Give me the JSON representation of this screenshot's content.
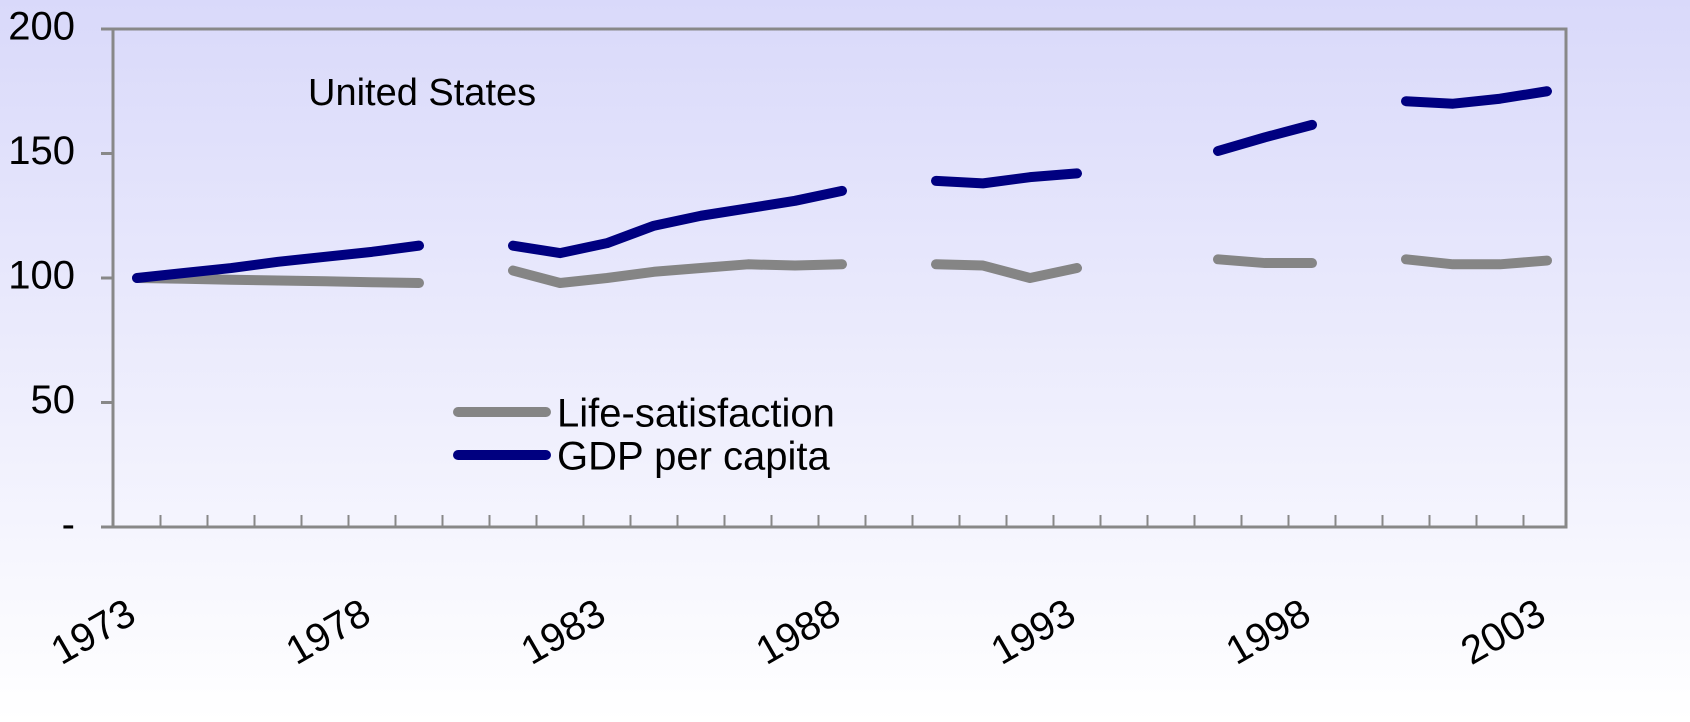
{
  "chart_data": {
    "type": "line",
    "annotation": "United States",
    "categories": [
      "1973",
      null,
      null,
      null,
      null,
      "1978",
      null,
      null,
      null,
      null,
      "1983",
      null,
      null,
      null,
      null,
      "1988",
      null,
      null,
      null,
      null,
      "1993",
      null,
      null,
      null,
      null,
      "1998",
      null,
      null,
      null,
      null,
      "2003"
    ],
    "series": [
      {
        "name": "Life-satisfaction",
        "color": "#858585",
        "values": [
          100,
          99.7,
          99.3,
          99,
          98.7,
          98.3,
          98,
          null,
          103,
          98,
          100,
          102.5,
          104,
          105.5,
          105,
          105.5,
          null,
          105.5,
          105,
          100,
          104,
          null,
          null,
          107.5,
          106,
          106,
          null,
          107.5,
          105.5,
          105.5,
          107
        ]
      },
      {
        "name": "GDP per capita",
        "color": "#000080",
        "values": [
          100,
          102,
          104,
          106.5,
          108.5,
          110.5,
          113,
          null,
          113,
          110,
          114,
          121,
          125,
          128,
          131,
          135,
          null,
          139,
          138,
          140.5,
          142,
          null,
          null,
          151,
          156.5,
          161.5,
          null,
          171,
          170,
          172,
          175
        ]
      }
    ],
    "ylim": [
      0,
      200
    ],
    "yticks": [
      {
        "value": 0,
        "label": "-"
      },
      50,
      100,
      150,
      200
    ],
    "grid": false
  }
}
